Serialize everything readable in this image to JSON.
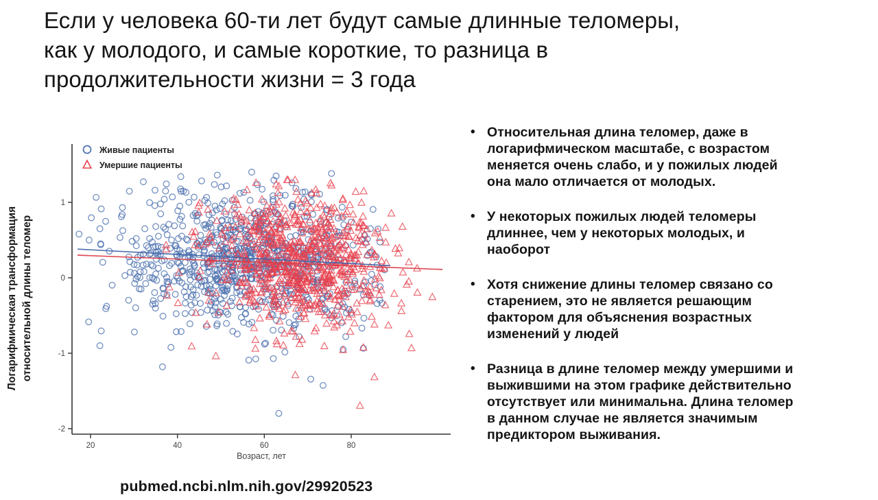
{
  "slide": {
    "title_lines": [
      "Если у человека 60-ти лет будут самые длинные теломеры,",
      "как у молодого, и самые короткие, то разница в",
      "продолжительности жизни = 3 года"
    ],
    "bullets": [
      {
        "lines": [
          "Относительная длина теломер, даже в",
          "логарифмическом масштабе, с возрастом",
          "меняется очень слабо, и у пожилых людей",
          "она мало отличается от молодых."
        ]
      },
      {
        "lines": [
          "У некоторых пожилых людей теломеры",
          "длиннее, чем у некоторых молодых, и",
          "наоборот"
        ]
      },
      {
        "lines": [
          "Хотя снижение длины теломер связано со",
          "старением, это не является решающим",
          "фактором для объяснения возрастных",
          "изменений у людей"
        ]
      },
      {
        "lines": [
          "Разница в длине теломер между умершими и",
          "выжившими на этом графике действительно",
          "отсутствует или минимальна. Длина теломер",
          "в данном случае не является значимым",
          "предиктором выживания."
        ]
      }
    ],
    "bullet_glyph": "•",
    "source_link": "pubmed.ncbi.nlm.nih.gov/29920523"
  },
  "chart_data": {
    "type": "scatter",
    "title": "",
    "xlabel": "Возраст, лет",
    "ylabel_lines": [
      "Логарифмическая трансформация",
      "относительной длины теломер"
    ],
    "x_ticks": [
      20,
      40,
      60,
      80
    ],
    "y_ticks": [
      1,
      0,
      -1,
      -2
    ],
    "xlim": [
      15.5,
      103
    ],
    "ylim": [
      -2.1,
      1.8
    ],
    "grid": false,
    "legend_position": "top-left-inside",
    "colors": {
      "alive": "#4a6fae",
      "deceased": "#e8404d",
      "trend_alive": "#3f64a6",
      "trend_deceased": "#d93a44",
      "axis": "#333333",
      "tick_label": "#444444"
    },
    "series": [
      {
        "name": "Живые пациенты",
        "marker": "circle",
        "color": "#4a6fae",
        "n": 880,
        "age_dist": {
          "mean": 56,
          "sd": 14,
          "min": 17,
          "max": 88
        },
        "y_dist": {
          "intercept_at_age20": 0.33,
          "slope_per_year": -0.002,
          "sd": 0.45,
          "min": -2.0,
          "max": 1.4,
          "low_tail_prob": 0.03,
          "low_tail_max": 0.9
        },
        "trend_line": {
          "x1": 17,
          "y1": 0.38,
          "x2": 89,
          "y2": 0.16
        },
        "seed": 1234
      },
      {
        "name": "Умершие пациенты",
        "marker": "triangle",
        "color": "#e8404d",
        "n": 800,
        "age_dist": {
          "mean": 68,
          "sd": 10.5,
          "min": 34,
          "max": 99
        },
        "y_dist": {
          "intercept_at_age20": 0.33,
          "slope_per_year": -0.002,
          "sd": 0.42,
          "min": -1.85,
          "max": 1.3,
          "low_tail_prob": 0.025,
          "low_tail_max": 0.8
        },
        "trend_line": {
          "x1": 17,
          "y1": 0.3,
          "x2": 101,
          "y2": 0.11
        },
        "seed": 99
      }
    ]
  }
}
